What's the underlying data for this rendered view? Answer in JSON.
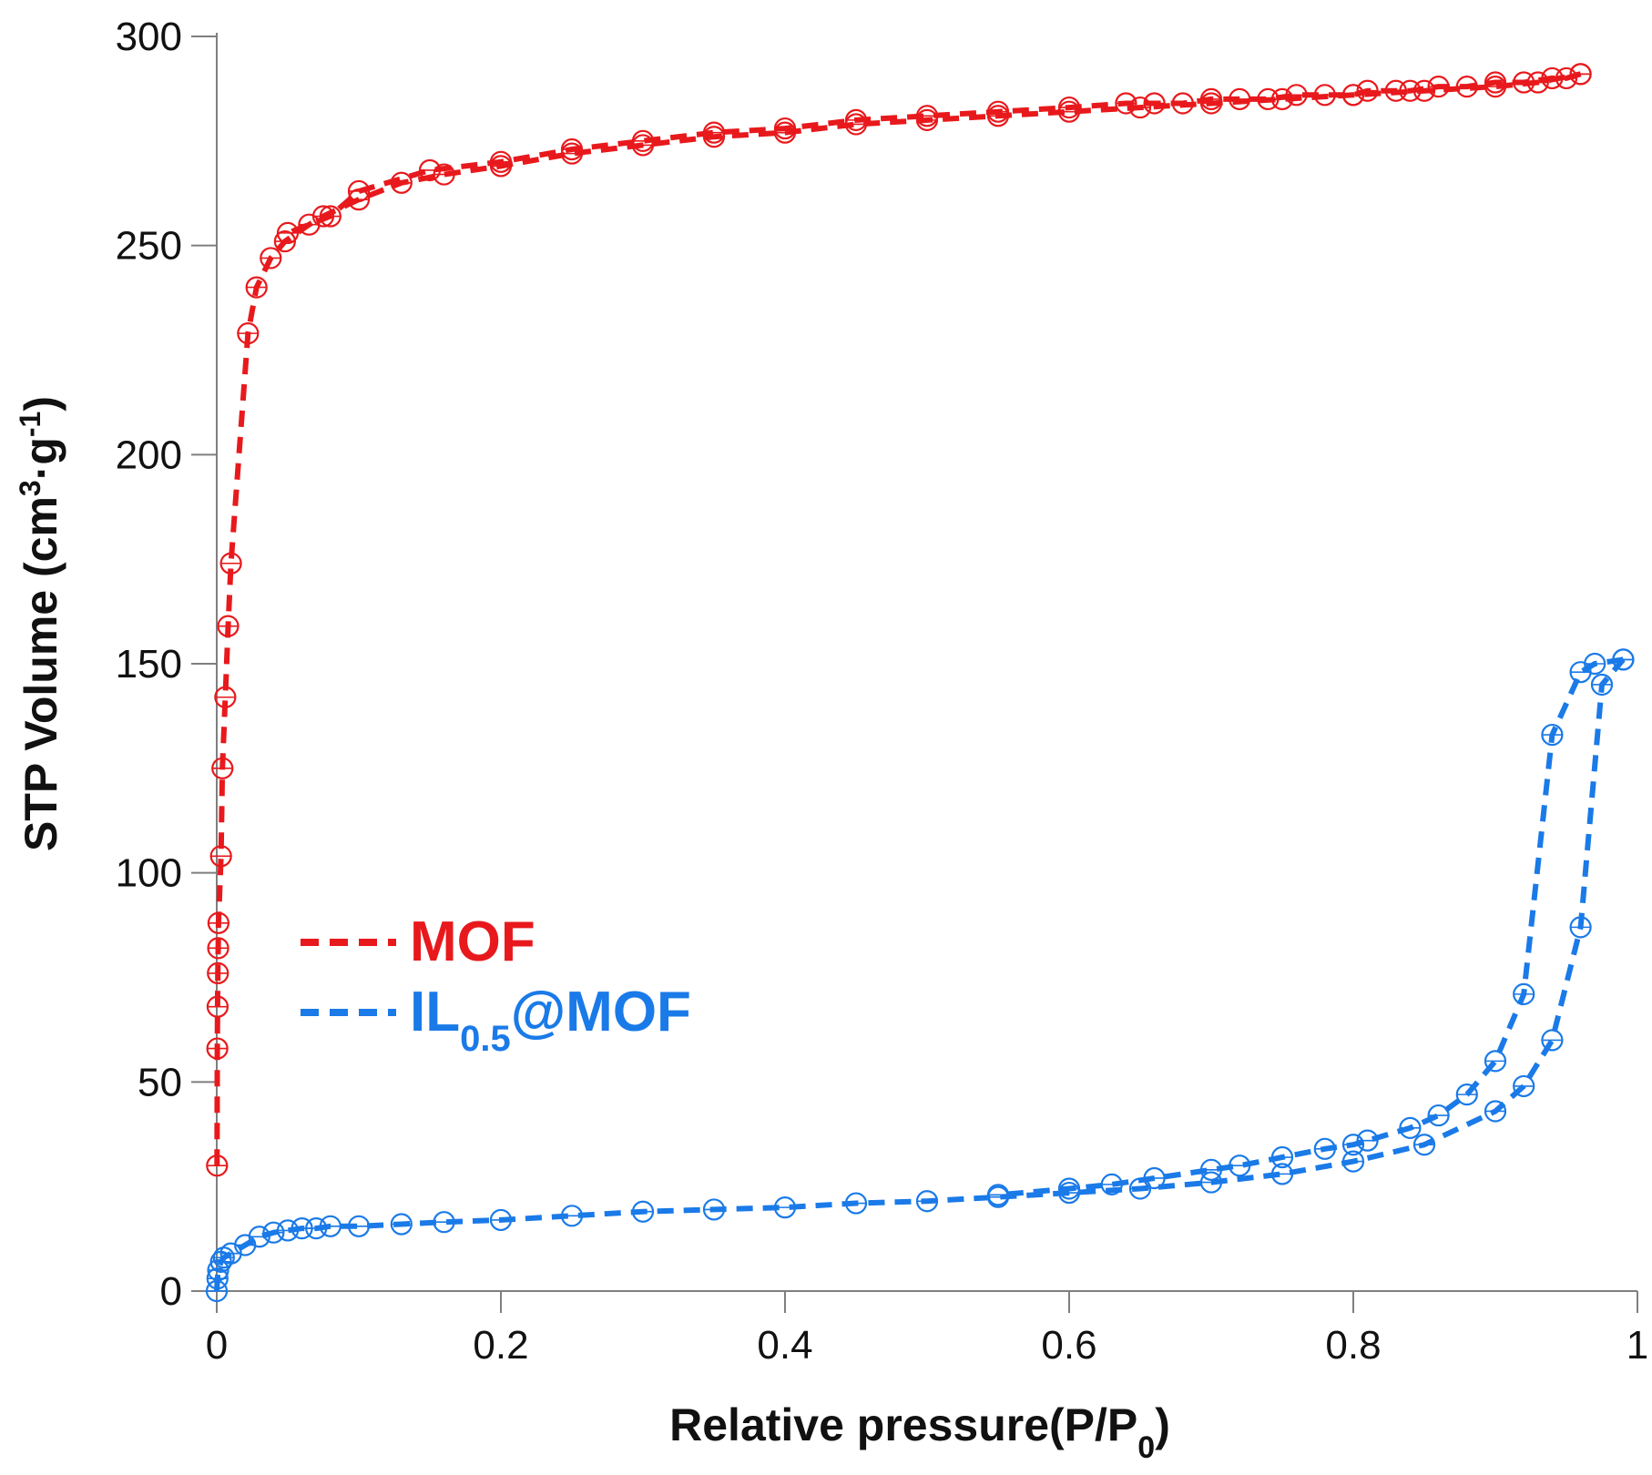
{
  "chart_data": {
    "type": "scatter",
    "title": "",
    "xlabel": "Relative pressure(P/P0)",
    "xlabel_parts": {
      "main": "Relative pressure(P/P",
      "sub": "0",
      "end": ")"
    },
    "ylabel": "STP Volume (cm3·g-1)",
    "ylabel_parts": {
      "main": "STP Volume  (cm",
      "sup1": "3",
      "mid": "·g",
      "sup2": "-1",
      "end": ")"
    },
    "xlim": [
      0,
      1
    ],
    "ylim": [
      0,
      300
    ],
    "xticks": [
      0,
      0.2,
      0.4,
      0.6,
      0.8,
      1
    ],
    "xtick_labels": [
      "0",
      "0.2",
      "0.4",
      "0.6",
      "0.8",
      "1"
    ],
    "yticks": [
      0,
      50,
      100,
      150,
      200,
      250,
      300
    ],
    "ytick_labels": [
      "0",
      "50",
      "100",
      "150",
      "200",
      "250",
      "300"
    ],
    "grid": false,
    "legend_position": "center-left",
    "series": [
      {
        "name": "MOF",
        "label_main": "MOF",
        "label_sub": "",
        "label_end": "",
        "color": "#e8191c",
        "adsorption": {
          "x": [
            0.0002,
            0.0004,
            0.0006,
            0.0008,
            0.001,
            0.0012,
            0.003,
            0.004,
            0.006,
            0.008,
            0.01,
            0.022,
            0.028,
            0.038,
            0.048,
            0.065,
            0.075,
            0.1,
            0.13,
            0.16,
            0.2,
            0.25,
            0.3,
            0.35,
            0.4,
            0.45,
            0.5,
            0.55,
            0.6,
            0.65,
            0.7,
            0.75,
            0.8,
            0.85,
            0.9,
            0.93,
            0.96
          ],
          "y": [
            30,
            58,
            68,
            76,
            82,
            88,
            104,
            125,
            142,
            159,
            174,
            229,
            240,
            247,
            251,
            255,
            257,
            261,
            265,
            267,
            269,
            272,
            274,
            276,
            277,
            279,
            280,
            281,
            282,
            283,
            284,
            285,
            286,
            287,
            288,
            289,
            291
          ]
        },
        "desorption": {
          "x": [
            0.96,
            0.95,
            0.94,
            0.92,
            0.9,
            0.88,
            0.86,
            0.84,
            0.83,
            0.81,
            0.8,
            0.78,
            0.76,
            0.74,
            0.72,
            0.7,
            0.68,
            0.66,
            0.64,
            0.6,
            0.55,
            0.5,
            0.45,
            0.4,
            0.35,
            0.3,
            0.25,
            0.2,
            0.15,
            0.1,
            0.08,
            0.05
          ],
          "y": [
            291,
            290,
            290,
            289,
            289,
            288,
            288,
            287,
            287,
            287,
            286,
            286,
            286,
            285,
            285,
            285,
            284,
            284,
            284,
            283,
            282,
            281,
            280,
            278,
            277,
            275,
            273,
            270,
            268,
            263,
            257,
            253
          ]
        }
      },
      {
        "name": "IL0.5@MOF",
        "label_main": "IL",
        "label_sub": "0.5",
        "label_end": "@MOF",
        "color": "#1a7ae8",
        "adsorption": {
          "x": [
            0,
            0.0005,
            0.001,
            0.003,
            0.005,
            0.01,
            0.02,
            0.03,
            0.04,
            0.05,
            0.06,
            0.07,
            0.08,
            0.1,
            0.13,
            0.16,
            0.2,
            0.25,
            0.3,
            0.35,
            0.4,
            0.45,
            0.5,
            0.55,
            0.6,
            0.65,
            0.7,
            0.75,
            0.8,
            0.85,
            0.9,
            0.92,
            0.94,
            0.96,
            0.975,
            0.99
          ],
          "y": [
            0,
            3,
            5,
            7,
            8,
            9,
            11,
            13,
            14,
            14.5,
            15,
            15,
            15.5,
            15.5,
            16,
            16.5,
            17,
            18,
            19,
            19.5,
            20,
            21,
            21.5,
            22.5,
            23.5,
            24.5,
            26,
            28,
            31,
            35,
            43,
            49,
            60,
            87,
            145,
            151
          ]
        },
        "desorption": {
          "x": [
            0.99,
            0.97,
            0.96,
            0.94,
            0.92,
            0.9,
            0.88,
            0.86,
            0.84,
            0.81,
            0.8,
            0.78,
            0.75,
            0.72,
            0.7,
            0.66,
            0.63,
            0.6,
            0.55
          ],
          "y": [
            151,
            150,
            148,
            133,
            71,
            55,
            47,
            42,
            39,
            36,
            35,
            34,
            32,
            30,
            29,
            27,
            25.5,
            24.5,
            23
          ]
        }
      }
    ]
  }
}
